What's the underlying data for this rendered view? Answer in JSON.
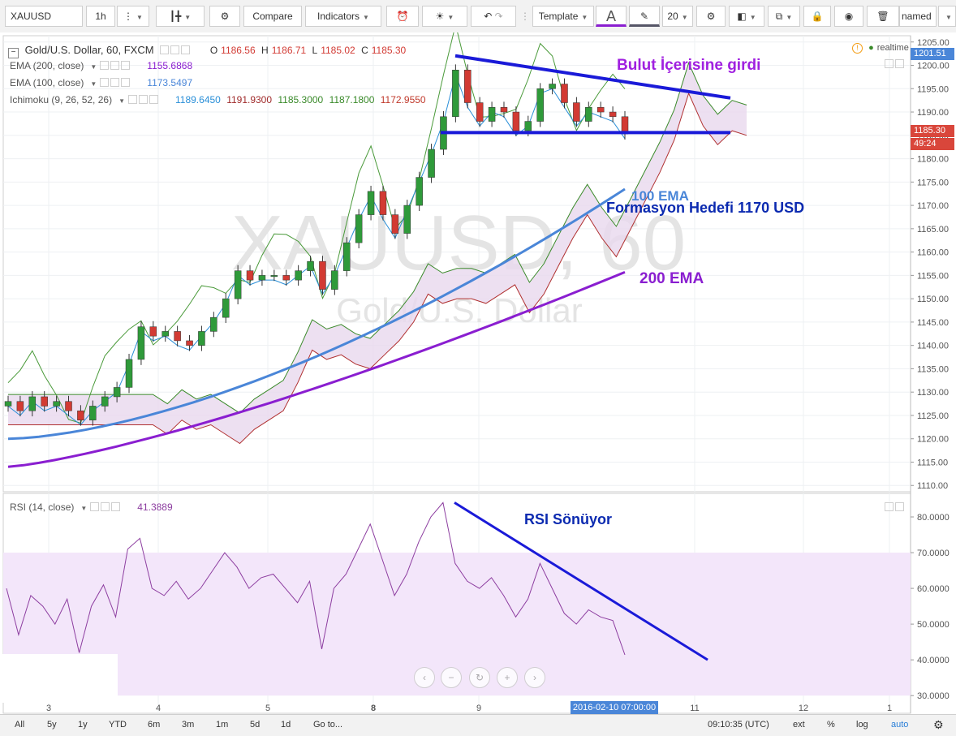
{
  "toolbar": {
    "symbol": "XAUUSD",
    "interval": "1h",
    "compare_label": "Compare",
    "indicators_label": "Indicators",
    "template_label": "Template",
    "font_size": "20",
    "named_label": "named"
  },
  "legend": {
    "title": "Gold/U.S. Dollar, 60, FXCM",
    "ohlc": {
      "o_label": "O",
      "o": "1186.56",
      "h_label": "H",
      "h": "1186.71",
      "l_label": "L",
      "l": "1185.02",
      "c_label": "C",
      "c": "1185.30"
    },
    "ema200": {
      "label": "EMA (200, close)",
      "value": "1155.6868"
    },
    "ema100": {
      "label": "EMA (100, close)",
      "value": "1173.5497"
    },
    "ichimoku": {
      "label": "Ichimoku (9, 26, 52, 26)",
      "values": [
        "1189.6450",
        "1191.9300",
        "1185.3000",
        "1187.1800",
        "1172.9550"
      ]
    },
    "realtime": "realtime",
    "rsi": {
      "label": "RSI (14, close)",
      "value": "41.3889"
    }
  },
  "watermark": {
    "symbol": "XAUUSD, 60",
    "name": "Gold/U.S. Dollar"
  },
  "annotations": {
    "cloud": "Bulut İçerisine girdi",
    "ema100": "100 EMA",
    "target": "Formasyon Hedefi 1170 USD",
    "ema200": "200 EMA",
    "rsi": "RSI Sönüyor"
  },
  "price_tags": {
    "top": "1201.51",
    "last": "1185.30",
    "countdown": "49:24"
  },
  "crosshair_time": "2016-02-10 07:00:00",
  "bottom_bar": {
    "ranges": [
      "All",
      "5y",
      "1y",
      "YTD",
      "6m",
      "3m",
      "1m",
      "5d",
      "1d",
      "Go to..."
    ],
    "clock": "09:10:35 (UTC)",
    "options": [
      "ext",
      "%",
      "log",
      "auto"
    ]
  },
  "colors": {
    "ema100": "#4a86d8",
    "ema200": "#8a1ed0",
    "cloud": "#e8d8ee",
    "trendline": "#1a1ad8",
    "up": "#2f9a3a",
    "down": "#d23a33",
    "rsi": "#8d3ea0"
  },
  "chart_data": [
    {
      "type": "candlestick",
      "title": "Gold/U.S. Dollar, 60, FXCM",
      "xlabel": "",
      "ylabel": "",
      "x_ticks": [
        "3",
        "4",
        "5",
        "8",
        "9",
        "11",
        "12",
        "1"
      ],
      "y_ticks": [
        1110,
        1115,
        1120,
        1125,
        1130,
        1135,
        1140,
        1145,
        1150,
        1155,
        1160,
        1165,
        1170,
        1175,
        1180,
        1185,
        1190,
        1195,
        1200,
        1205
      ],
      "ylim": [
        1109,
        1206
      ],
      "close_path": [
        1128,
        1126,
        1129,
        1127,
        1128,
        1126,
        1124,
        1127,
        1129,
        1131,
        1137,
        1144,
        1142,
        1143,
        1141,
        1140,
        1143,
        1146,
        1150,
        1156,
        1154,
        1155,
        1155,
        1154,
        1156,
        1158,
        1152,
        1156,
        1162,
        1168,
        1173,
        1168,
        1164,
        1170,
        1176,
        1182,
        1189,
        1199,
        1192,
        1188,
        1191,
        1190,
        1186,
        1188,
        1195,
        1196,
        1192,
        1188,
        1191,
        1190,
        1189,
        1185.3
      ],
      "ema100_endpoints": [
        [
          0,
          1120
        ],
        [
          51,
          1173.5
        ]
      ],
      "ema200_endpoints": [
        [
          0,
          1114
        ],
        [
          51,
          1155.7
        ]
      ],
      "cloud_range": [
        1172,
        1192
      ],
      "support_level": 1185.6,
      "resistance_line": [
        [
          0,
          1201
        ],
        [
          1,
          1193
        ]
      ]
    },
    {
      "type": "line",
      "title": "RSI (14, close)",
      "y_ticks": [
        30,
        40,
        50,
        60,
        70,
        80
      ],
      "ylim": [
        28,
        85
      ],
      "bands": [
        30,
        70
      ],
      "values": [
        60,
        47,
        58,
        55,
        50,
        57,
        42,
        55,
        61,
        52,
        71,
        74,
        60,
        58,
        62,
        57,
        60,
        65,
        70,
        66,
        60,
        63,
        64,
        60,
        56,
        62,
        43,
        60,
        64,
        71,
        78,
        68,
        58,
        64,
        73,
        80,
        84,
        67,
        62,
        60,
        63,
        58,
        52,
        57,
        67,
        60,
        53,
        50,
        54,
        52,
        51,
        41.4
      ],
      "trendline": [
        [
          84,
          0
        ],
        [
          40,
          1
        ]
      ],
      "last_value": 41.3889
    }
  ]
}
